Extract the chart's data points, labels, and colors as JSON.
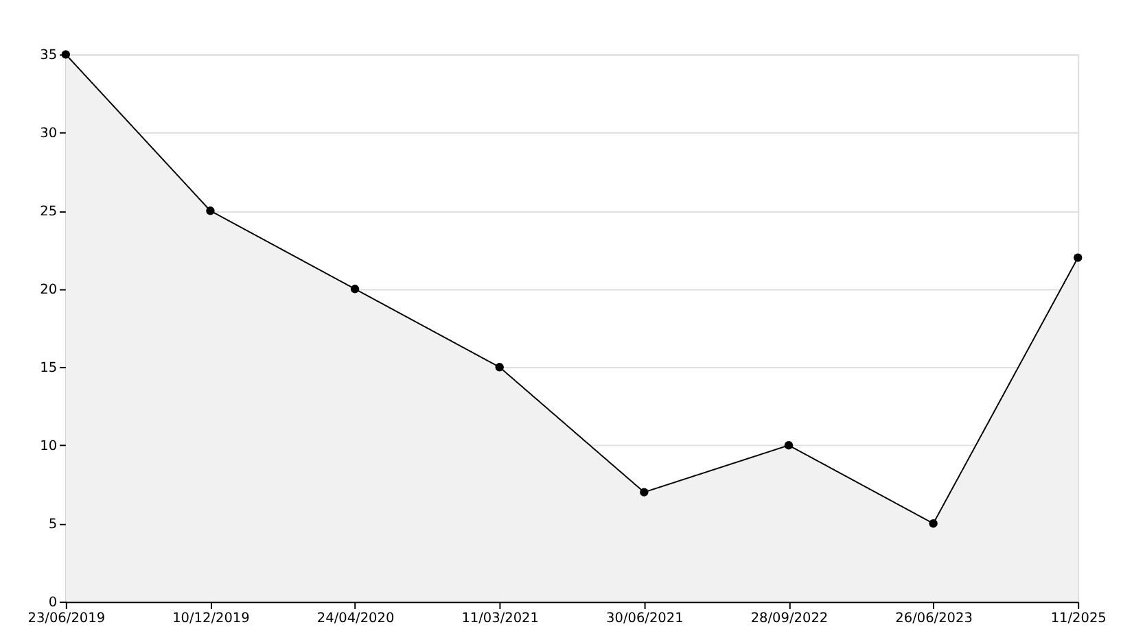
{
  "chart_data": {
    "type": "area",
    "categories": [
      "23/06/2019",
      "10/12/2019",
      "24/04/2020",
      "11/03/2021",
      "30/06/2021",
      "28/09/2022",
      "26/06/2023",
      "11/2025"
    ],
    "series": [
      {
        "color": "#000000",
        "values": [
          35,
          25,
          20,
          15,
          7,
          10,
          5,
          22
        ]
      }
    ],
    "ylim": [
      0,
      35
    ],
    "yticks": [
      0,
      5,
      10,
      15,
      20,
      25,
      30,
      35
    ],
    "grid": "y",
    "marker": "circle",
    "line_style": "solid"
  }
}
